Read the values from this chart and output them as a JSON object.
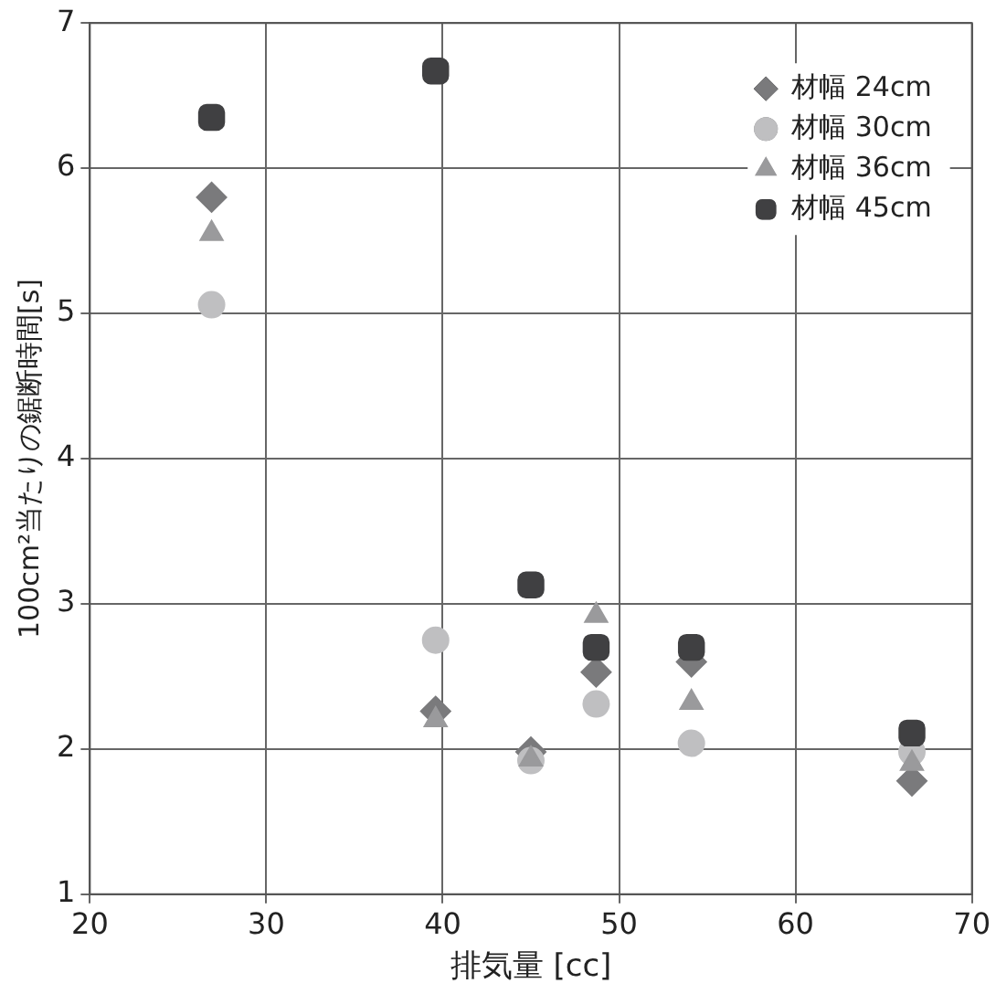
{
  "chart_data": {
    "type": "scatter",
    "xlabel": "排気量 [cc]",
    "ylabel": "100cm²当たりの鋸断時間[s]",
    "xlim": [
      20,
      70
    ],
    "xticks": [
      20,
      30,
      40,
      50,
      60,
      70
    ],
    "ylim": [
      1,
      7
    ],
    "yticks": [
      1,
      2,
      3,
      4,
      5,
      6,
      7
    ],
    "grid": true,
    "legend": "top right",
    "series": [
      {
        "name": "材幅 24cm",
        "color": "#7a7a7c",
        "marker": "diamond",
        "x": [
          26.9,
          39.6,
          45,
          48.7,
          54.1,
          66.6
        ],
        "values": [
          5.8,
          2.26,
          1.98,
          2.53,
          2.6,
          1.78
        ]
      },
      {
        "name": "材幅 30cm",
        "color": "#bfbfc1",
        "marker": "circle",
        "x": [
          26.9,
          39.6,
          45,
          48.7,
          54.1,
          66.6
        ],
        "values": [
          5.06,
          2.75,
          1.92,
          2.31,
          2.04,
          1.98
        ]
      },
      {
        "name": "材幅 36cm",
        "color": "#9a9a9c",
        "marker": "triangle",
        "x": [
          26.9,
          39.6,
          45,
          48.7,
          54.1,
          66.6
        ],
        "values": [
          5.55,
          2.2,
          1.93,
          2.92,
          2.32,
          1.9
        ]
      },
      {
        "name": "材幅 45cm",
        "color": "#404042",
        "marker": "square",
        "x": [
          26.9,
          39.6,
          45,
          48.7,
          54.1,
          66.6
        ],
        "values": [
          6.35,
          6.67,
          3.13,
          2.7,
          2.7,
          2.11
        ]
      }
    ]
  }
}
